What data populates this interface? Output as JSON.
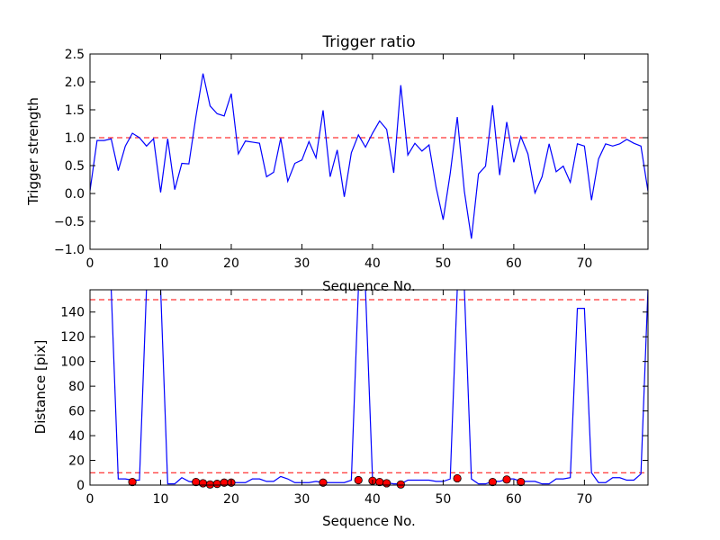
{
  "chart_data": [
    {
      "type": "line",
      "title": "Trigger ratio",
      "xlabel": "Sequence No.",
      "ylabel": "Trigger strength",
      "xlim": [
        0,
        79
      ],
      "ylim": [
        -1.0,
        2.5
      ],
      "xticks": [
        0,
        10,
        20,
        30,
        40,
        50,
        60,
        70
      ],
      "yticks": [
        -1.0,
        -0.5,
        0.0,
        0.5,
        1.0,
        1.5,
        2.0,
        2.5
      ],
      "ytick_labels": [
        "−1.0",
        "−0.5",
        "0.0",
        "0.5",
        "1.0",
        "1.5",
        "2.0",
        "2.5"
      ],
      "threshold": 1.0,
      "line_color": "#0000ff",
      "threshold_color": "#ff0000",
      "series": [
        {
          "name": "trigger strength",
          "values": [
            0.05,
            0.95,
            0.95,
            0.98,
            0.41,
            0.85,
            1.08,
            1.0,
            0.85,
            0.98,
            0.02,
            0.98,
            0.07,
            0.54,
            0.53,
            1.38,
            2.15,
            1.57,
            1.43,
            1.39,
            1.79,
            0.71,
            0.94,
            0.92,
            0.9,
            0.3,
            0.38,
            0.99,
            0.22,
            0.54,
            0.6,
            0.93,
            0.64,
            1.49,
            0.3,
            0.78,
            -0.06,
            0.73,
            1.05,
            0.83,
            1.08,
            1.3,
            1.15,
            0.37,
            1.94,
            0.69,
            0.9,
            0.76,
            0.87,
            0.11,
            -0.47,
            0.36,
            1.37,
            0.04,
            -0.81,
            0.35,
            0.49,
            1.58,
            0.33,
            1.28,
            0.56,
            1.02,
            0.71,
            0.01,
            0.3,
            0.89,
            0.39,
            0.49,
            0.2,
            0.89,
            0.85,
            -0.12,
            0.62,
            0.89,
            0.85,
            0.89,
            0.97,
            0.9,
            0.85,
            0.04
          ]
        }
      ]
    },
    {
      "type": "line",
      "title": "",
      "xlabel": "Sequence No.",
      "ylabel": "Distance [pix]",
      "xlim": [
        0,
        79
      ],
      "ylim": [
        0,
        158
      ],
      "xticks": [
        0,
        10,
        20,
        30,
        40,
        50,
        60,
        70
      ],
      "yticks": [
        0,
        20,
        40,
        60,
        80,
        100,
        120,
        140
      ],
      "thresholds": [
        10,
        150
      ],
      "line_color": "#0000ff",
      "threshold_color": "#ff0000",
      "marker_color": "#ff0000",
      "series": [
        {
          "name": "distance",
          "values": [
            159,
            159,
            159,
            159,
            5,
            5,
            4,
            4,
            159,
            159,
            159,
            1,
            1,
            6,
            3,
            2,
            2,
            1,
            1,
            2,
            2,
            2,
            2,
            5,
            5,
            3,
            3,
            7,
            5,
            2,
            2,
            2,
            3,
            2,
            2,
            2,
            2,
            4,
            159,
            159,
            5,
            3,
            2,
            1,
            1,
            4,
            4,
            4,
            4,
            3,
            3,
            5,
            159,
            159,
            5,
            1,
            1,
            3,
            3,
            5,
            5,
            3,
            3,
            3,
            1,
            1,
            5,
            5,
            6,
            143,
            143,
            10,
            2,
            2,
            6,
            6,
            4,
            4,
            9,
            159
          ]
        }
      ],
      "markers": {
        "x": [
          6,
          15,
          16,
          17,
          18,
          19,
          20,
          33,
          38,
          40,
          41,
          42,
          44,
          52,
          57,
          59,
          61
        ],
        "y": [
          2.5,
          2.5,
          1.5,
          0.5,
          1.0,
          2.0,
          2.0,
          2.0,
          4.0,
          3.5,
          2.5,
          1.5,
          0.5,
          5.5,
          2.5,
          4.5,
          2.5
        ]
      }
    }
  ]
}
